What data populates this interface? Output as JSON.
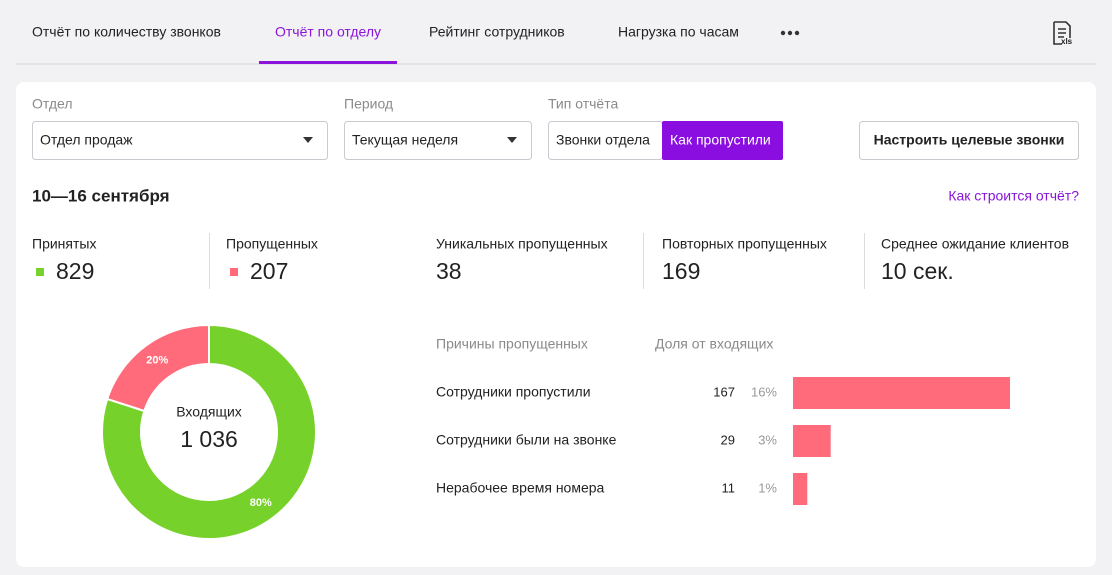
{
  "tabs": {
    "items": [
      "Отчёт по количеству звонков",
      "Отчёт по отделу",
      "Рейтинг сотрудников",
      "Нагрузка по часам"
    ],
    "active": 1
  },
  "filters": {
    "department": {
      "label": "Отдел",
      "value": "Отдел продаж"
    },
    "period": {
      "label": "Период",
      "value": "Текущая неделя"
    },
    "report_type": {
      "label": "Тип отчёта",
      "options": [
        "Звонки отдела",
        "Как пропустили"
      ],
      "active": 1
    },
    "button": "Настроить целевые звонки"
  },
  "date_range": "10—16 сентября",
  "help_link": "Как строится отчёт?",
  "stats": [
    {
      "label": "Принятых",
      "value": "829"
    },
    {
      "label": "Пропущенных",
      "value": "207"
    },
    {
      "label": "Уникальных пропущенных",
      "value": "38"
    },
    {
      "label": "Повторных пропущенных",
      "value": "169"
    },
    {
      "label": "Среднее ожидание клиентов",
      "value": "10 сек."
    }
  ],
  "chart_data": [
    {
      "type": "donut",
      "center_label": "Входящих",
      "center_value": "1 036",
      "values": [
        80,
        20
      ],
      "value_labels": [
        "80%",
        "20%"
      ],
      "colors": [
        "#76d12b",
        "#ff6b7a"
      ]
    },
    {
      "type": "hbar",
      "category_header": "Причины пропущенных",
      "share_header": "Доля от входящих",
      "categories": [
        "Сотрудники пропустили",
        "Сотрудники были на звонке",
        "Нерабочее время номера"
      ],
      "values": [
        167,
        29,
        11
      ],
      "share_labels": [
        "16%",
        "3%",
        "1%"
      ],
      "color": "#ff6b7a"
    }
  ]
}
